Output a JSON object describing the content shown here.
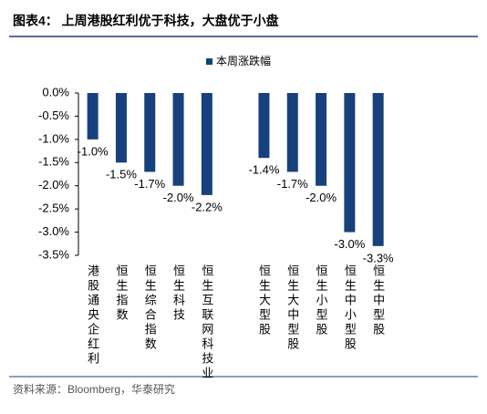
{
  "header": {
    "title": "图表4：  上周港股红利优于科技，大盘优于小盘"
  },
  "chart_data": {
    "type": "bar",
    "categories": [
      "港股通央企红利",
      "恒生指数",
      "恒生综合指数",
      "恒生科技",
      "恒生互联网科技业",
      null,
      "恒生大型股",
      "恒生大中型股",
      "恒生小型股",
      "恒生中小型股",
      "恒生中型股"
    ],
    "series": [
      {
        "name": "本周涨跌幅",
        "color": "#17417c",
        "values": [
          -1.0,
          -1.5,
          -1.7,
          -2.0,
          -2.2,
          null,
          -1.4,
          -1.7,
          -2.0,
          -3.0,
          -3.3
        ],
        "value_labels": [
          "-1.0%",
          "-1.5%",
          "-1.7%",
          "-2.0%",
          "-2.2%",
          null,
          "-1.4%",
          "-1.7%",
          "-2.0%",
          "-3.0%",
          "-3.3%"
        ]
      }
    ],
    "ylim": [
      -3.5,
      0
    ],
    "yticks": [
      {
        "value": 0,
        "label": "0.0%"
      },
      {
        "value": -0.5,
        "label": "-0.5%"
      },
      {
        "value": -1.0,
        "label": "-1.0%"
      },
      {
        "value": -1.5,
        "label": "-1.5%"
      },
      {
        "value": -2.0,
        "label": "-2.0%"
      },
      {
        "value": -2.5,
        "label": "-2.5%"
      },
      {
        "value": -3.0,
        "label": "-3.0%"
      },
      {
        "value": -3.5,
        "label": "-3.5%"
      }
    ],
    "legend": "top"
  },
  "footer": {
    "source": "资料来源：Bloomberg，华泰研究"
  }
}
